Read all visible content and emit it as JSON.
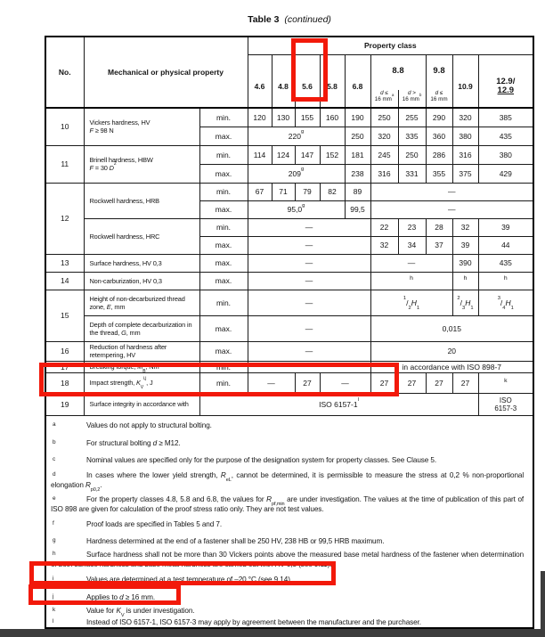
{
  "colors": {
    "highlight_red": "#f2190a",
    "bar_dark": "#3d3d3d"
  },
  "title": {
    "table_label": "Table 3",
    "continued": "(continued)"
  },
  "header": {
    "no": "No.",
    "property": "Mechanical or physical property",
    "property_class": "Property class",
    "classes": [
      "4.6",
      "4.8",
      "5.6",
      "5.8",
      "6.8",
      "8.8",
      "9.8",
      "10.9"
    ],
    "class_129_line1": "12.9/",
    "class_129_line2": "12.9",
    "sub_88a": "*d* ≤\n16 mm^a^",
    "sub_88b": "*d* >\n16 mm^b^",
    "sub_98": "*d* ≤\n16 mm"
  },
  "rows": {
    "r10": {
      "no": "10",
      "label1": "Vickers hardness, HV",
      "label2": "*F* ≥ 98 N",
      "min_label": "min.",
      "max_label": "max.",
      "min": [
        "120",
        "130",
        "155",
        "160",
        "190",
        "250",
        "255",
        "290",
        "320",
        "385"
      ],
      "max_span": "220^g^",
      "max": [
        "250",
        "320",
        "335",
        "360",
        "380",
        "435"
      ]
    },
    "r11": {
      "no": "11",
      "label1": "Brinell hardness, HBW",
      "label2": "*F* = 30 *D*^2^",
      "min_label": "min.",
      "max_label": "max.",
      "min": [
        "114",
        "124",
        "147",
        "152",
        "181",
        "245",
        "250",
        "286",
        "316",
        "380"
      ],
      "max_span": "209^g^",
      "max": [
        "238",
        "316",
        "331",
        "355",
        "375",
        "429"
      ]
    },
    "r12": {
      "no": "12",
      "label_hrb": "Rockwell hardness, HRB",
      "label_hrc": "Rockwell hardness, HRC",
      "min_label": "min.",
      "max_label": "max.",
      "hrb_min": [
        "67",
        "71",
        "79",
        "82",
        "89"
      ],
      "hrb_min_dash": "—",
      "hrb_max_span": "95,0^g^",
      "hrb_max_68": "99,5",
      "hrb_max_dash": "—",
      "hrc_min_dash": "—",
      "hrc_min": [
        "22",
        "23",
        "28",
        "32",
        "39"
      ],
      "hrc_max_dash": "—",
      "hrc_max": [
        "32",
        "34",
        "37",
        "39",
        "44"
      ]
    },
    "r13": {
      "no": "13",
      "label": "Surface hardness, HV 0,3",
      "max_label": "max.",
      "dash_left": "—",
      "dash_mid": "—",
      "v109": "390",
      "v129": "435"
    },
    "r14": {
      "no": "14",
      "label": "Non-carburization, HV 0,3",
      "max_label": "max.",
      "dash_left": "—",
      "ref_mid": "h",
      "ref109": "h",
      "ref129": "h"
    },
    "r15": {
      "no": "15",
      "label_a": "Height of non-decarburized thread zone, *E*, mm",
      "min_label": "min.",
      "dash_a": "—",
      "frac_mid": "^1^/~2~*H*~1~",
      "frac109": "^2^/~3~*H*~1~",
      "frac129": "^3^/~4~*H*~1~",
      "label_b": "Depth of complete decarburization in the thread, *G*, mm",
      "max_label": "max.",
      "dash_b": "—",
      "value_b": "0,015"
    },
    "r16": {
      "no": "16",
      "label": "Reduction of hardness after retempering, HV",
      "max_label": "max.",
      "dash": "—",
      "value": "20"
    },
    "r17": {
      "no": "17",
      "label": "Breaking torque, *M*~B~, Nm",
      "min_label": "min.",
      "value": "in accordance with ISO 898-7"
    },
    "r18": {
      "no": "18",
      "label": "Impact strength, *K*~V~^i,j^, J",
      "min_label": "min.",
      "dash1": "—",
      "v56": "27",
      "dash2": "—",
      "values": [
        "27",
        "27",
        "27",
        "27"
      ],
      "ref129": "k"
    },
    "r19": {
      "no": "19",
      "label": "Surface integrity in accordance with",
      "value_main": "ISO 6157-1^l^",
      "value_129": "ISO\n6157-3"
    }
  },
  "footnotes": [
    {
      "letter": "a",
      "text": "Values do not apply to structural bolting."
    },
    {
      "letter": "b",
      "text": "For structural bolting *d* ≥ M12."
    },
    {
      "letter": "c",
      "text": "Nominal values are specified only for the purpose of the designation system for property classes. See Clause 5."
    },
    {
      "letter": "d",
      "text": "In cases where the lower yield strength, *R*~eL~, cannot be determined, it is permissible to measure the stress at 0,2 % non-proportional elongation *R*~p0,2~."
    },
    {
      "letter": "e",
      "text": "For the property classes 4.8, 5.8 and 6.8, the values for *R*~pf,min~ are under investigation. The values at the time of publication of this part of ISO 898 are given for calculation of the proof stress ratio only. They are not test values."
    },
    {
      "letter": "f",
      "text": "Proof loads are specified in Tables 5 and 7."
    },
    {
      "letter": "g",
      "text": "Hardness determined at the end of a fastener shall be 250 HV, 238 HB or 99,5 HRB maximum."
    },
    {
      "letter": "h",
      "text": "Surface hardness shall not be more than 30 Vickers points above the measured base metal hardness of the fastener when determination of both surface hardness and base metal hardness are carried out with HV 0,3 (see 9.11)."
    },
    {
      "letter": "i",
      "text": "Values are determined at a test temperature of –20 °C (see 9.14)."
    },
    {
      "letter": "j",
      "text": "Applies to *d* ≥ 16 mm."
    },
    {
      "letter": "k",
      "text": "Value for *K*~V~ is under investigation."
    },
    {
      "letter": "l",
      "text": "Instead of ISO 6157-1, ISO 6157-3 may apply by agreement between the manufacturer and the purchaser."
    }
  ]
}
